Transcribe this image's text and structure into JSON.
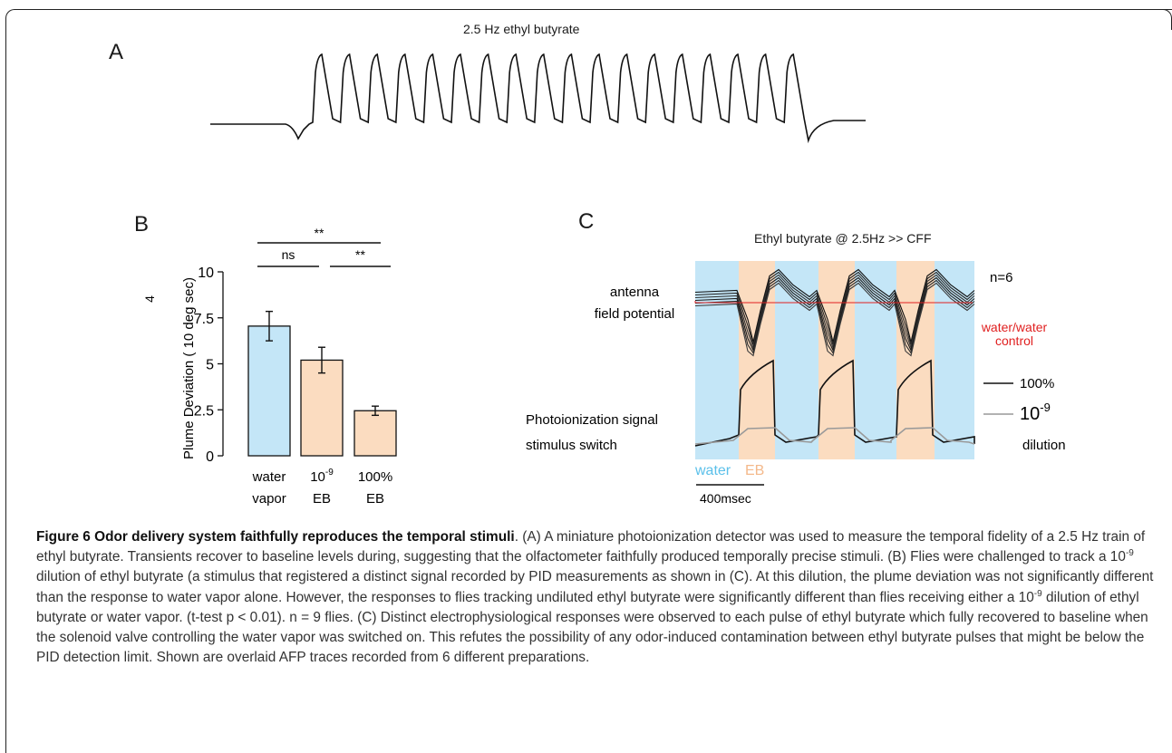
{
  "panels": {
    "a": "A",
    "b": "B",
    "c": "C"
  },
  "panel_a": {
    "title": "2.5 Hz ethyl butyrate",
    "pulse_count": 18
  },
  "chart_data": [
    {
      "type": "bar",
      "panel": "B",
      "categories": [
        "water vapor",
        "10-9 EB",
        "100% EB"
      ],
      "category_lines": [
        [
          "water",
          "vapor"
        ],
        [
          "10",
          "EB"
        ],
        [
          "100%",
          "EB"
        ]
      ],
      "category_sup": [
        "",
        "-9",
        ""
      ],
      "values": [
        7.05,
        5.2,
        2.45
      ],
      "errors": [
        0.8,
        0.7,
        0.25
      ],
      "colors": [
        "#c4e6f7",
        "#fbdcc0",
        "#fbdcc0"
      ],
      "ylabel": "Plume Deviation ( 10   deg sec)",
      "ylabel_exponent": "4",
      "ylim": [
        0,
        10
      ],
      "yticks": [
        0,
        2.5,
        5,
        7.5,
        10
      ],
      "ytick_labels": [
        "0",
        "2.5",
        "5",
        "7.5",
        "10"
      ],
      "significance": [
        {
          "pair": [
            0,
            1
          ],
          "label": "ns"
        },
        {
          "pair": [
            1,
            2
          ],
          "label": "**"
        },
        {
          "pair": [
            0,
            2
          ],
          "label": "**"
        }
      ]
    }
  ],
  "panel_c": {
    "title": "Ethyl butyrate @ 2.5Hz >> CFF",
    "n_label": "n=6",
    "afp_label_1": "antenna",
    "afp_label_2": "field potential",
    "control_label_1": "water/water",
    "control_label_2": "control",
    "pid_label": "Photoionization signal",
    "switch_label": "stimulus switch",
    "legend_100": "100%",
    "legend_dilution_base": "10",
    "legend_dilution_exp": "-9",
    "legend_dilution_word": "dilution",
    "water_label": "water",
    "eb_label": "EB",
    "scale_label": "400msec",
    "colors": {
      "water": "#c4e6f7",
      "eb": "#fbdcc0",
      "control": "#e02020",
      "dilute": "#999999"
    }
  },
  "caption": {
    "figure_label": "Figure 6 Odor delivery system faithfully reproduces the temporal stimuli",
    "p_a": ". (A) A miniature photoionization detector was used to measure the temporal fidelity of a 2.5 Hz train of ethyl butyrate. Transients recover to baseline levels during, suggesting that the olfactometer faithfully produced temporally precise stimuli. (B) Flies were challenged to track a 10",
    "sup1": "-9",
    "p_b": " dilution of ethyl butyrate (a stimulus that registered a distinct signal recorded by PID measurements as shown in (C). At this dilution, the plume deviation was not significantly different than the response to water vapor alone. However, the responses to flies tracking undiluted ethyl butyrate were significantly different than flies receiving either a 10",
    "sup2": "-9",
    "p_c": " dilution of ethyl butyrate or water vapor. (t-test p < 0.01). n = 9 flies. (C) Distinct electrophysiological responses were observed to each pulse of ethyl butyrate which fully recovered to baseline when the solenoid valve controlling the water vapor was switched on. This refutes the possibility of any odor-induced contamination between ethyl butyrate pulses that might be below the PID detection limit. Shown are overlaid AFP traces recorded from 6 different preparations."
  }
}
